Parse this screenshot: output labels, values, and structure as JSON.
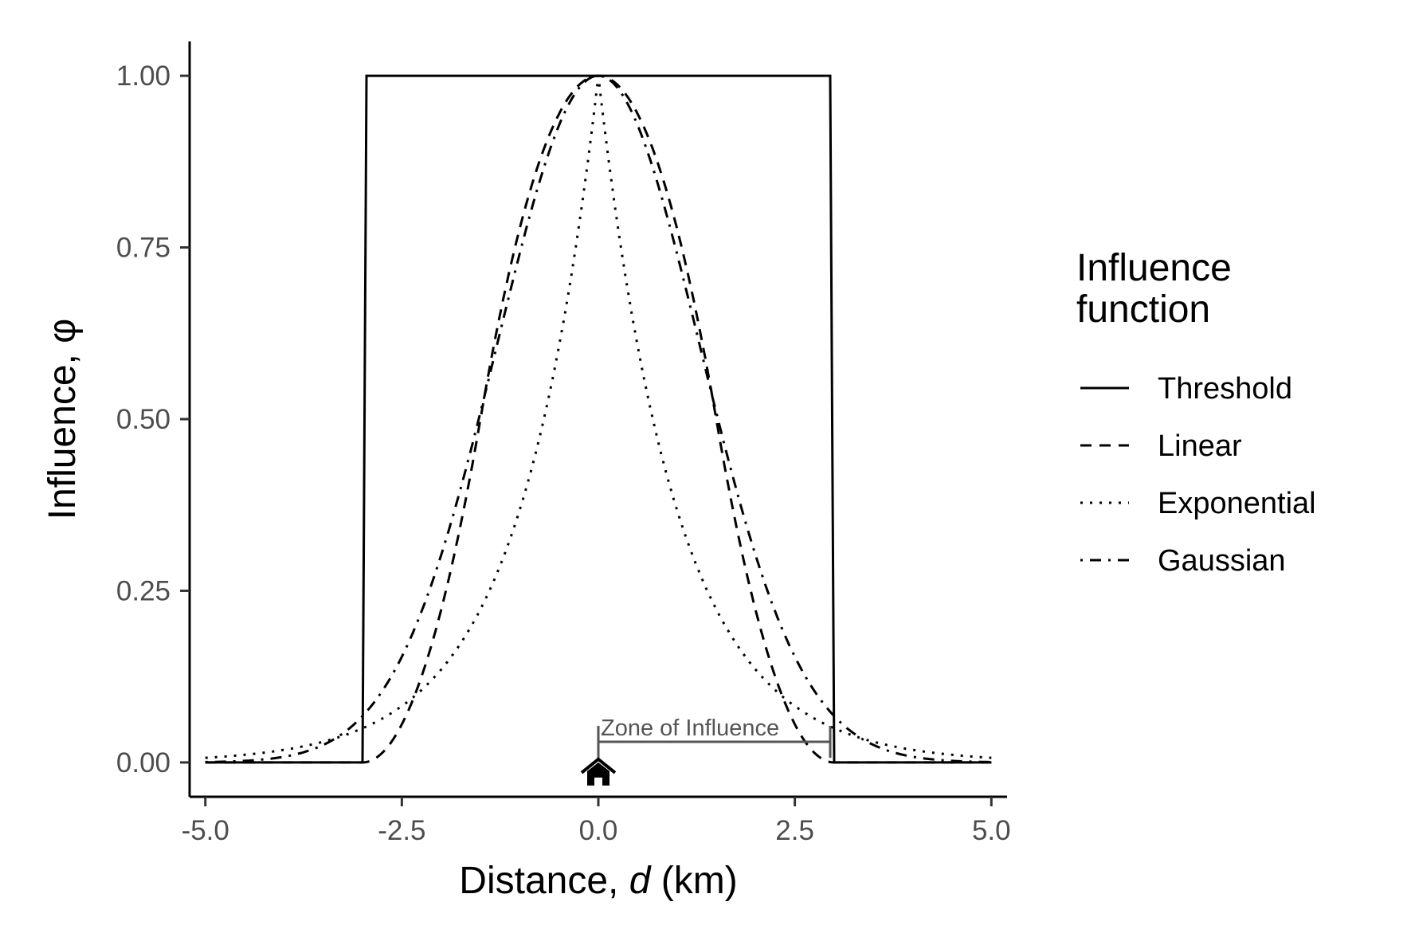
{
  "chart_data": {
    "type": "line",
    "title": "",
    "xlabel_prefix": "Distance, ",
    "xlabel_var": "d",
    "xlabel_suffix": " (km)",
    "ylabel": "Influence, φ",
    "xlim": [
      -5.2,
      5.2
    ],
    "ylim": [
      -0.05,
      1.05
    ],
    "x_ticks": [
      -5.0,
      -2.5,
      0.0,
      2.5,
      5.0
    ],
    "x_tick_labels": [
      "-5.0",
      "-2.5",
      "0.0",
      "2.5",
      "5.0"
    ],
    "y_ticks": [
      0.0,
      0.25,
      0.5,
      0.75,
      1.0
    ],
    "y_tick_labels": [
      "0.00",
      "0.25",
      "0.50",
      "0.75",
      "1.00"
    ],
    "grid": false,
    "legend": {
      "title_line1": "Influence",
      "title_line2": "function",
      "placement": "right",
      "entries": [
        "Threshold",
        "Linear",
        "Exponential",
        "Gaussian"
      ]
    },
    "series": [
      {
        "name": "Threshold",
        "linestyle": "solid",
        "x": [
          -5.0,
          -3.0,
          -2.95,
          2.95,
          3.0,
          5.0
        ],
        "y": [
          0.0,
          0.0,
          1.0,
          1.0,
          0.0,
          0.0
        ]
      },
      {
        "name": "Linear",
        "linestyle": "dashed",
        "x": [
          -5.0,
          -4.5,
          -4.0,
          -3.5,
          -3.0,
          -2.5,
          -2.0,
          -1.5,
          -1.0,
          -0.5,
          0.0,
          0.5,
          1.0,
          1.5,
          2.0,
          2.5,
          3.0,
          3.5,
          4.0,
          4.5,
          5.0
        ],
        "y": [
          0.0,
          0.0,
          0.0,
          0.0,
          0.01,
          0.12,
          0.29,
          0.5,
          0.71,
          0.88,
          1.0,
          0.88,
          0.71,
          0.5,
          0.29,
          0.12,
          0.01,
          0.0,
          0.0,
          0.0,
          0.0
        ]
      },
      {
        "name": "Exponential",
        "linestyle": "dotted",
        "x": [
          -5.0,
          -4.5,
          -4.0,
          -3.5,
          -3.0,
          -2.5,
          -2.0,
          -1.5,
          -1.0,
          -0.5,
          0.0,
          0.5,
          1.0,
          1.5,
          2.0,
          2.5,
          3.0,
          3.5,
          4.0,
          4.5,
          5.0
        ],
        "y": [
          0.007,
          0.011,
          0.018,
          0.03,
          0.05,
          0.082,
          0.135,
          0.223,
          0.368,
          0.607,
          1.0,
          0.607,
          0.368,
          0.223,
          0.135,
          0.082,
          0.05,
          0.03,
          0.018,
          0.011,
          0.007
        ],
        "peak_shape": "cusp"
      },
      {
        "name": "Gaussian",
        "linestyle": "dotdash",
        "x": [
          -5.0,
          -4.5,
          -4.0,
          -3.5,
          -3.0,
          -2.5,
          -2.0,
          -1.5,
          -1.0,
          -0.5,
          0.0,
          0.5,
          1.0,
          1.5,
          2.0,
          2.5,
          3.0,
          3.5,
          4.0,
          4.5,
          5.0
        ],
        "y": [
          0.0,
          0.0,
          0.001,
          0.009,
          0.05,
          0.125,
          0.264,
          0.46,
          0.717,
          0.917,
          1.0,
          0.917,
          0.717,
          0.46,
          0.264,
          0.125,
          0.05,
          0.009,
          0.001,
          0.0,
          0.0
        ]
      }
    ],
    "annotation": {
      "text": "Zone of Influence",
      "x_start": 0.0,
      "x_end": 2.95,
      "y": 0.03,
      "color": "#555555"
    },
    "marker": {
      "icon": "house-icon",
      "x": 0.0,
      "y": -0.015
    }
  }
}
